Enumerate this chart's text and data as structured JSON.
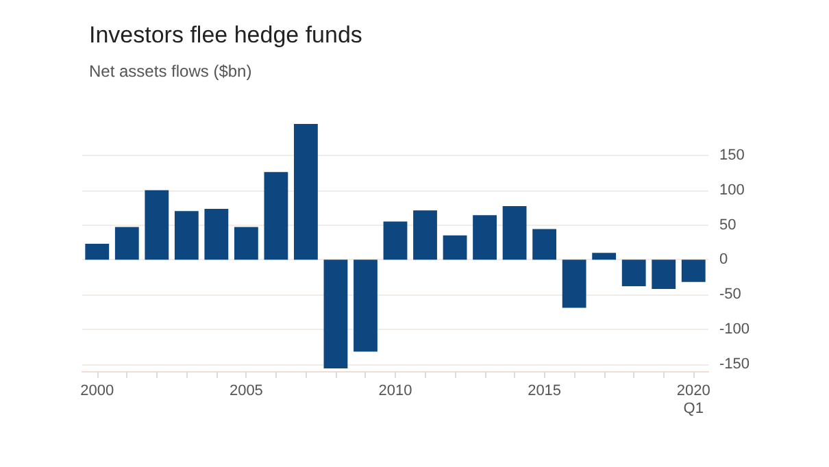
{
  "chart_data": {
    "type": "bar",
    "title": "Investors flee hedge funds",
    "subtitle": "Net assets flows ($bn)",
    "categories": [
      "2000",
      null,
      null,
      null,
      null,
      "2005",
      null,
      null,
      null,
      null,
      "2010",
      null,
      null,
      null,
      null,
      "2015",
      null,
      null,
      null,
      null,
      "2020\nQ1"
    ],
    "values": [
      23,
      47,
      100,
      70,
      73,
      47,
      126,
      195,
      -156,
      -132,
      55,
      71,
      35,
      64,
      77,
      44,
      -69,
      10,
      -38,
      -42,
      -32
    ],
    "color": "#0e4680",
    "ylim": [
      -160,
      200
    ],
    "yticks": [
      -150,
      -100,
      -50,
      0,
      50,
      100,
      150
    ],
    "grid": "y"
  }
}
